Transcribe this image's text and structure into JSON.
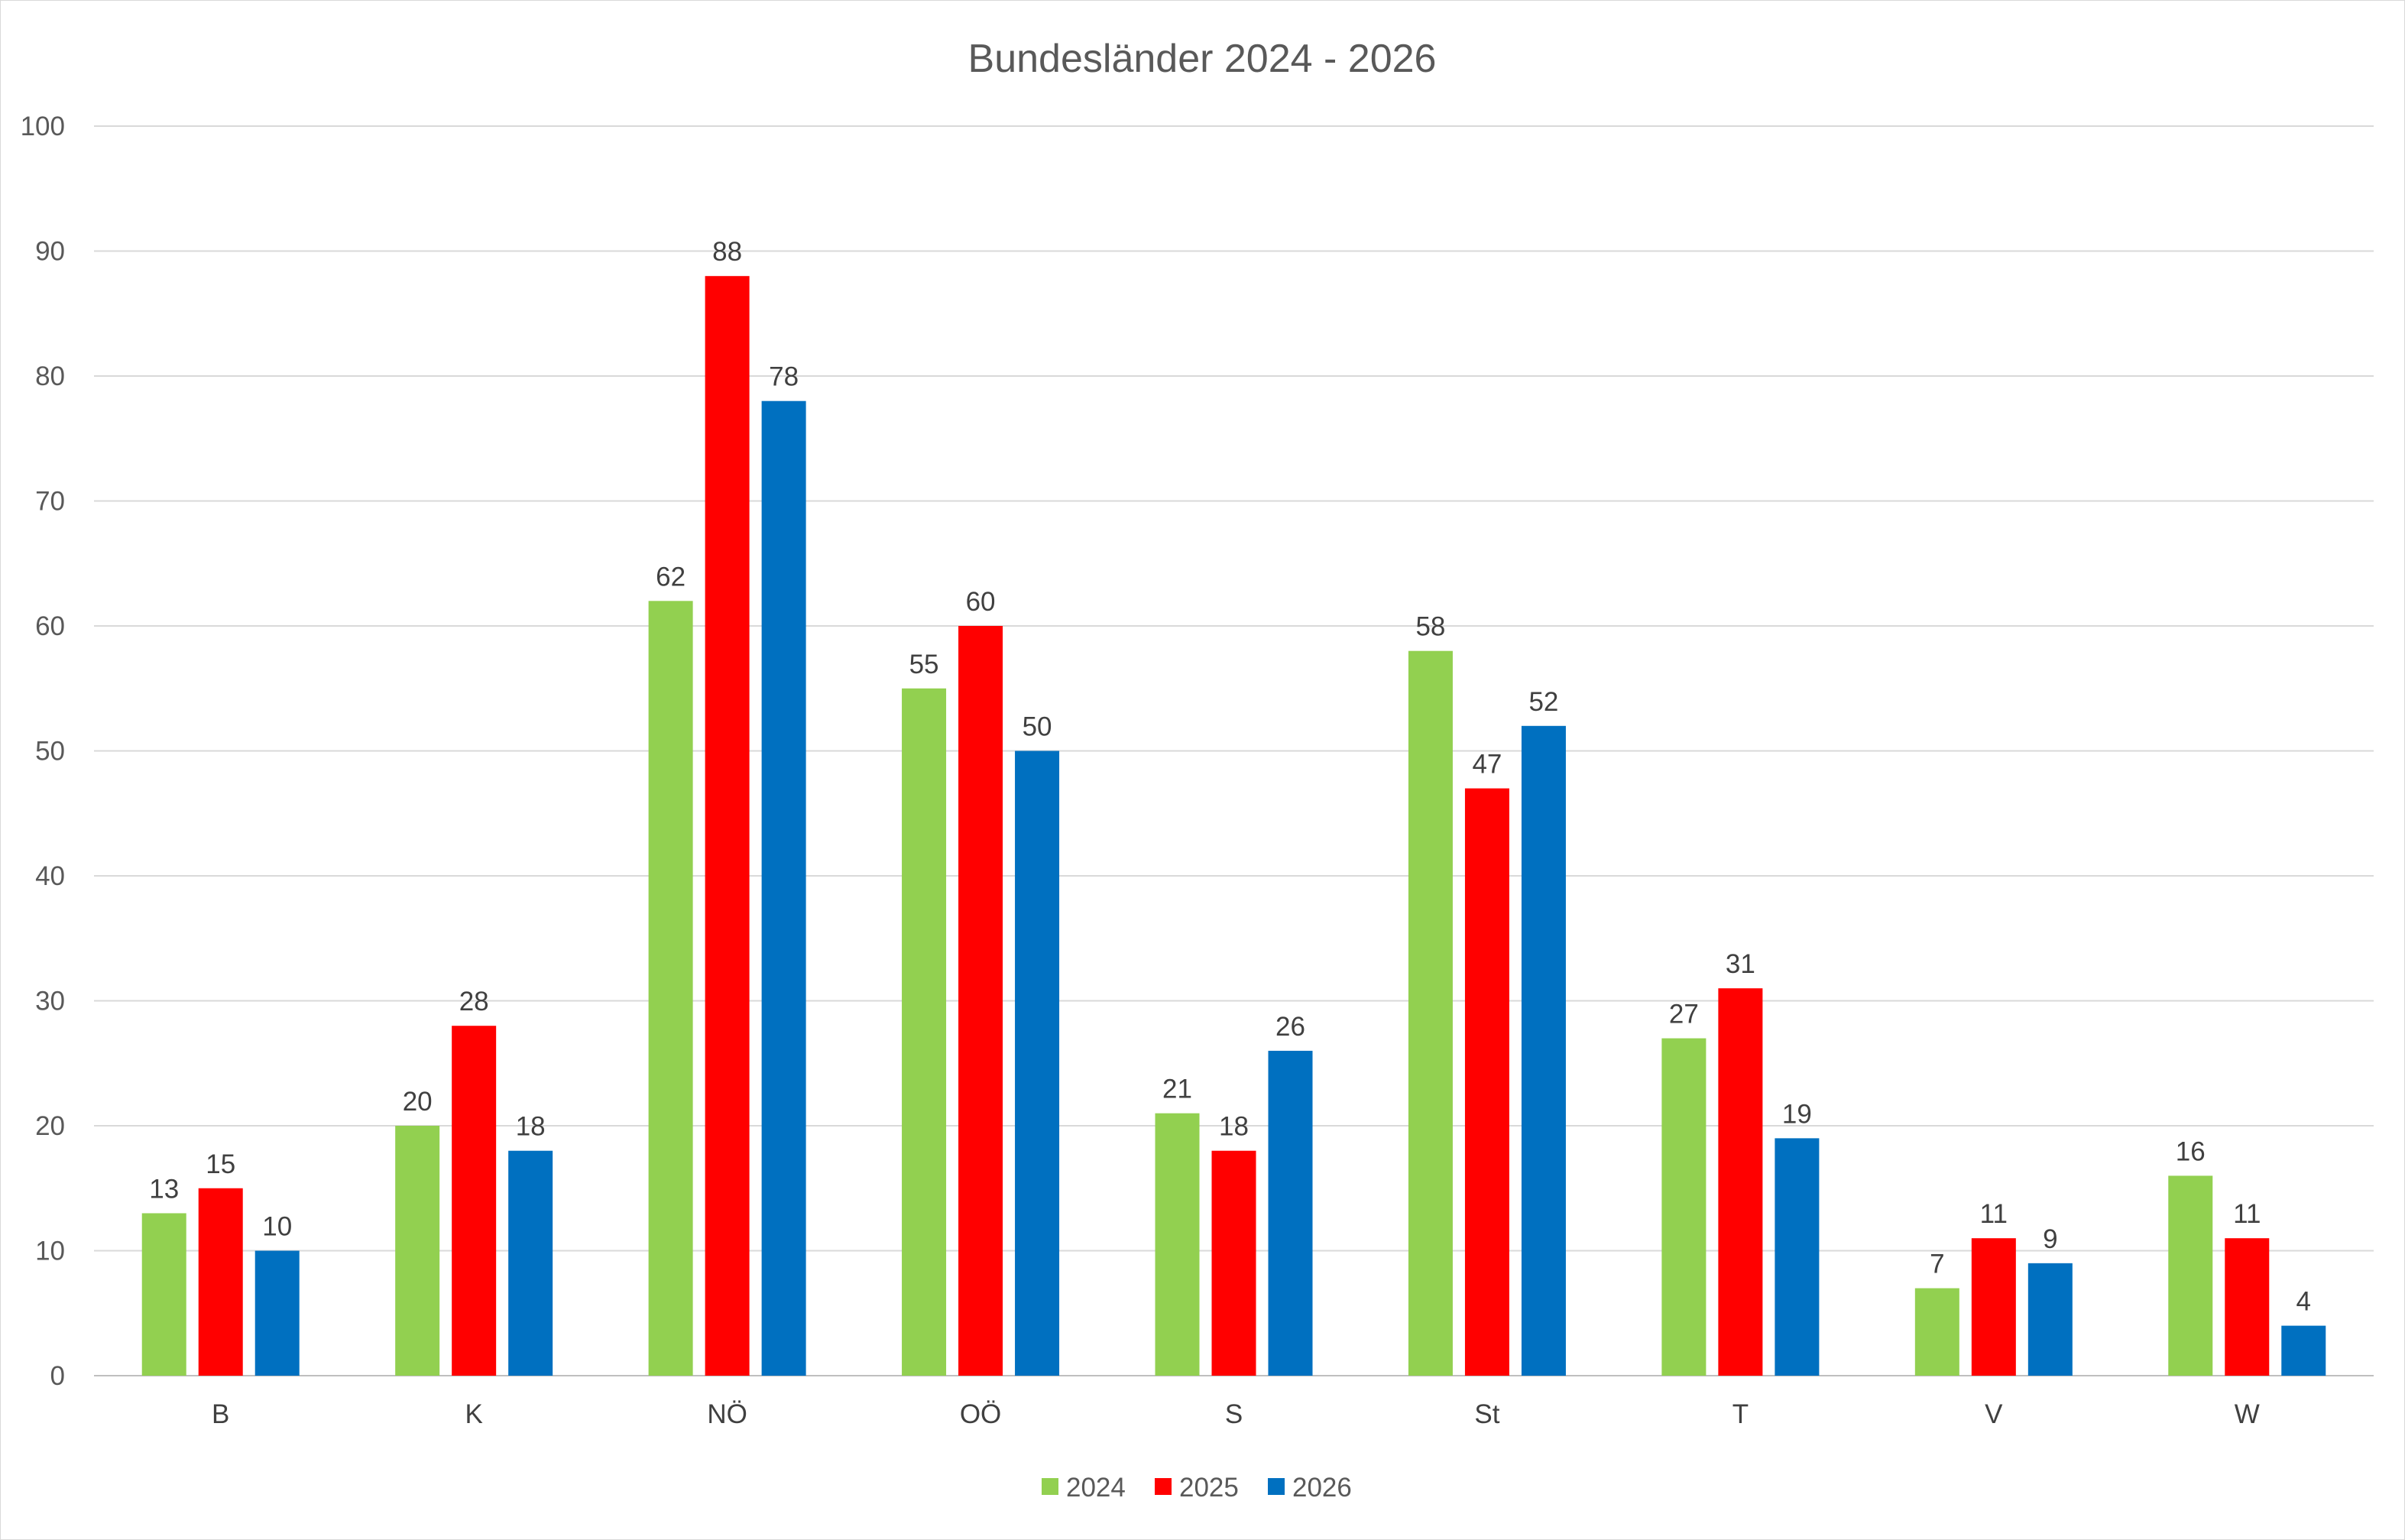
{
  "chart_data": {
    "type": "bar",
    "title": "Bundesländer 2024 - 2026",
    "xlabel": "",
    "ylabel": "",
    "ylim": [
      0,
      100
    ],
    "yticks": [
      0,
      10,
      20,
      30,
      40,
      50,
      60,
      70,
      80,
      90,
      100
    ],
    "yticks_text": [
      "0",
      "10",
      "20",
      "30",
      "40",
      "50",
      "60",
      "70",
      "80",
      "90",
      "100"
    ],
    "grid": true,
    "legend_position": "bottom",
    "categories": [
      "B",
      "K",
      "NÖ",
      "OÖ",
      "S",
      "St",
      "T",
      "V",
      "W"
    ],
    "series": [
      {
        "name": "2024",
        "color": "#92d050",
        "values": [
          13,
          20,
          62,
          55,
          21,
          58,
          27,
          7,
          16
        ]
      },
      {
        "name": "2025",
        "color": "#ff0000",
        "values": [
          15,
          28,
          88,
          60,
          18,
          47,
          31,
          11,
          11
        ]
      },
      {
        "name": "2026",
        "color": "#0070c0",
        "values": [
          10,
          18,
          78,
          50,
          26,
          52,
          19,
          9,
          4
        ]
      }
    ]
  }
}
